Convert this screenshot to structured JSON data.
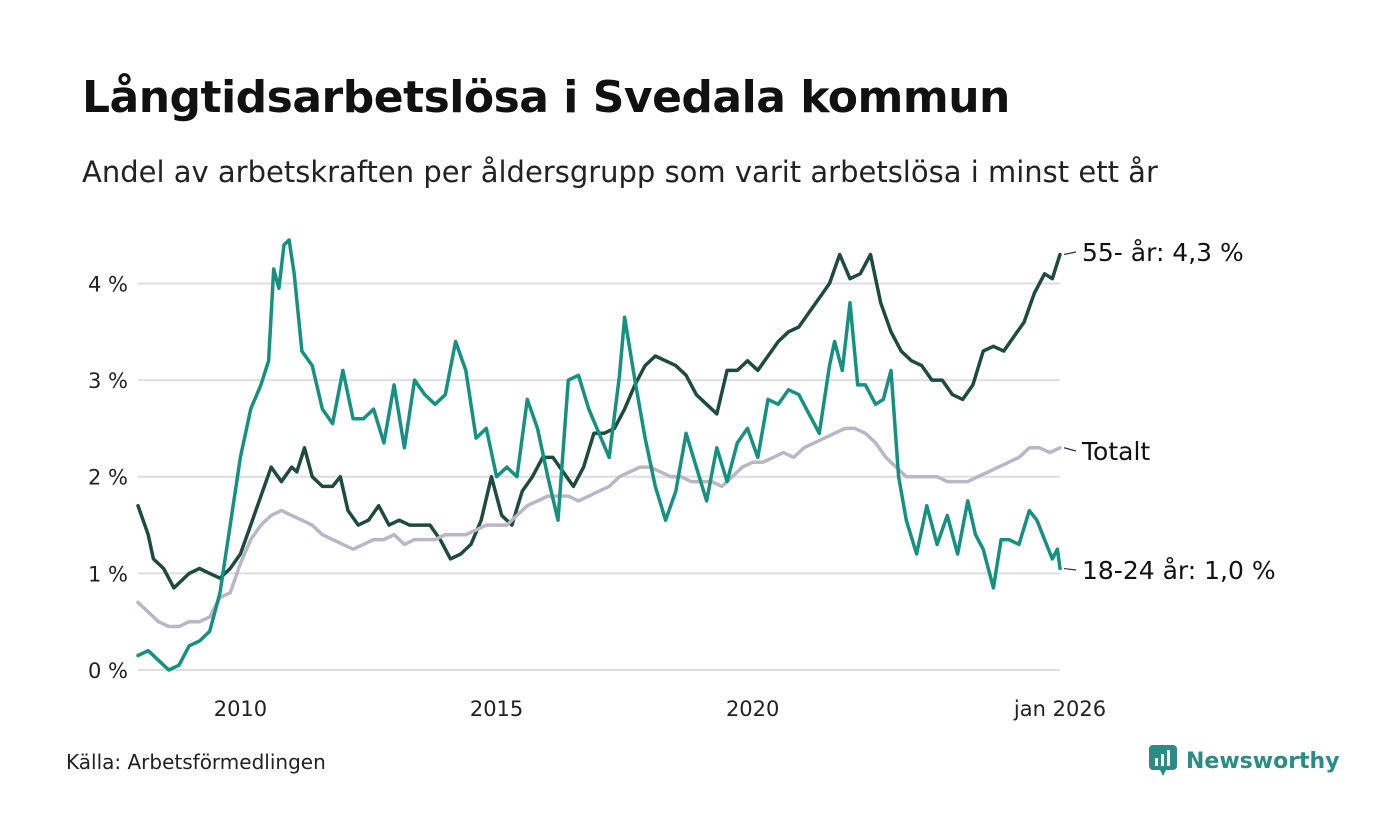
{
  "title": "Långtidsarbetslösa i Svedala kommun",
  "subtitle": "Andel av arbetskraften per åldersgrupp som varit arbetslösa i minst ett år",
  "source": "Källa: Arbetsförmedlingen",
  "brand": "Newsworthy",
  "colors": {
    "youth": "#16917f",
    "senior": "#1e4a40",
    "total": "#b9b6c6",
    "grid": "#dedde3",
    "brand": "#2a8c84"
  },
  "chart_data": {
    "type": "line",
    "title": "Långtidsarbetslösa i Svedala kommun",
    "xlabel": "",
    "ylabel": "",
    "ylim": [
      0,
      4.5
    ],
    "xlim": [
      2008.0,
      2026.0
    ],
    "y_ticks": [
      {
        "value": 0,
        "label": "0 %"
      },
      {
        "value": 1,
        "label": "1 %"
      },
      {
        "value": 2,
        "label": "2 %"
      },
      {
        "value": 3,
        "label": "3 %"
      },
      {
        "value": 4,
        "label": "4 %"
      }
    ],
    "x_ticks": [
      {
        "value": 2010,
        "label": "2010"
      },
      {
        "value": 2015,
        "label": "2015"
      },
      {
        "value": 2020,
        "label": "2020"
      },
      {
        "value": 2026,
        "label": "jan 2026"
      }
    ],
    "series": [
      {
        "name": "55- år",
        "end_label": "55- år: 4,3 %",
        "color_key": "senior",
        "points": [
          [
            2008.0,
            1.7
          ],
          [
            2008.2,
            1.4
          ],
          [
            2008.3,
            1.15
          ],
          [
            2008.5,
            1.05
          ],
          [
            2008.7,
            0.85
          ],
          [
            2009.0,
            1.0
          ],
          [
            2009.2,
            1.05
          ],
          [
            2009.4,
            1.0
          ],
          [
            2009.6,
            0.95
          ],
          [
            2009.8,
            1.05
          ],
          [
            2010.0,
            1.2
          ],
          [
            2010.2,
            1.5
          ],
          [
            2010.4,
            1.8
          ],
          [
            2010.6,
            2.1
          ],
          [
            2010.8,
            1.95
          ],
          [
            2011.0,
            2.1
          ],
          [
            2011.1,
            2.05
          ],
          [
            2011.25,
            2.3
          ],
          [
            2011.4,
            2.0
          ],
          [
            2011.6,
            1.9
          ],
          [
            2011.8,
            1.9
          ],
          [
            2011.95,
            2.0
          ],
          [
            2012.1,
            1.65
          ],
          [
            2012.3,
            1.5
          ],
          [
            2012.5,
            1.55
          ],
          [
            2012.7,
            1.7
          ],
          [
            2012.9,
            1.5
          ],
          [
            2013.1,
            1.55
          ],
          [
            2013.3,
            1.5
          ],
          [
            2013.5,
            1.5
          ],
          [
            2013.7,
            1.5
          ],
          [
            2013.9,
            1.35
          ],
          [
            2014.1,
            1.15
          ],
          [
            2014.3,
            1.2
          ],
          [
            2014.5,
            1.3
          ],
          [
            2014.7,
            1.55
          ],
          [
            2014.9,
            2.0
          ],
          [
            2015.1,
            1.6
          ],
          [
            2015.3,
            1.5
          ],
          [
            2015.5,
            1.85
          ],
          [
            2015.7,
            2.0
          ],
          [
            2015.9,
            2.2
          ],
          [
            2016.1,
            2.2
          ],
          [
            2016.3,
            2.05
          ],
          [
            2016.5,
            1.9
          ],
          [
            2016.7,
            2.1
          ],
          [
            2016.9,
            2.45
          ],
          [
            2017.1,
            2.45
          ],
          [
            2017.3,
            2.5
          ],
          [
            2017.5,
            2.7
          ],
          [
            2017.7,
            2.95
          ],
          [
            2017.9,
            3.15
          ],
          [
            2018.1,
            3.25
          ],
          [
            2018.3,
            3.2
          ],
          [
            2018.5,
            3.15
          ],
          [
            2018.7,
            3.05
          ],
          [
            2018.9,
            2.85
          ],
          [
            2019.1,
            2.75
          ],
          [
            2019.3,
            2.65
          ],
          [
            2019.5,
            3.1
          ],
          [
            2019.7,
            3.1
          ],
          [
            2019.9,
            3.2
          ],
          [
            2020.1,
            3.1
          ],
          [
            2020.3,
            3.25
          ],
          [
            2020.5,
            3.4
          ],
          [
            2020.7,
            3.5
          ],
          [
            2020.9,
            3.55
          ],
          [
            2021.1,
            3.7
          ],
          [
            2021.3,
            3.85
          ],
          [
            2021.5,
            4.0
          ],
          [
            2021.7,
            4.3
          ],
          [
            2021.9,
            4.05
          ],
          [
            2022.1,
            4.1
          ],
          [
            2022.3,
            4.3
          ],
          [
            2022.5,
            3.8
          ],
          [
            2022.7,
            3.5
          ],
          [
            2022.9,
            3.3
          ],
          [
            2023.1,
            3.2
          ],
          [
            2023.3,
            3.15
          ],
          [
            2023.5,
            3.0
          ],
          [
            2023.7,
            3.0
          ],
          [
            2023.9,
            2.85
          ],
          [
            2024.1,
            2.8
          ],
          [
            2024.3,
            2.95
          ],
          [
            2024.5,
            3.3
          ],
          [
            2024.7,
            3.35
          ],
          [
            2024.9,
            3.3
          ],
          [
            2025.1,
            3.45
          ],
          [
            2025.3,
            3.6
          ],
          [
            2025.5,
            3.9
          ],
          [
            2025.7,
            4.1
          ],
          [
            2025.85,
            4.05
          ],
          [
            2026.0,
            4.3
          ]
        ]
      },
      {
        "name": "Totalt",
        "end_label": "Totalt",
        "color_key": "total",
        "points": [
          [
            2008.0,
            0.7
          ],
          [
            2008.2,
            0.6
          ],
          [
            2008.4,
            0.5
          ],
          [
            2008.6,
            0.45
          ],
          [
            2008.8,
            0.45
          ],
          [
            2009.0,
            0.5
          ],
          [
            2009.2,
            0.5
          ],
          [
            2009.4,
            0.55
          ],
          [
            2009.6,
            0.75
          ],
          [
            2009.8,
            0.8
          ],
          [
            2010.0,
            1.1
          ],
          [
            2010.2,
            1.35
          ],
          [
            2010.4,
            1.5
          ],
          [
            2010.6,
            1.6
          ],
          [
            2010.8,
            1.65
          ],
          [
            2011.0,
            1.6
          ],
          [
            2011.2,
            1.55
          ],
          [
            2011.4,
            1.5
          ],
          [
            2011.6,
            1.4
          ],
          [
            2011.8,
            1.35
          ],
          [
            2012.0,
            1.3
          ],
          [
            2012.2,
            1.25
          ],
          [
            2012.4,
            1.3
          ],
          [
            2012.6,
            1.35
          ],
          [
            2012.8,
            1.35
          ],
          [
            2013.0,
            1.4
          ],
          [
            2013.2,
            1.3
          ],
          [
            2013.4,
            1.35
          ],
          [
            2013.6,
            1.35
          ],
          [
            2013.8,
            1.35
          ],
          [
            2014.0,
            1.4
          ],
          [
            2014.2,
            1.4
          ],
          [
            2014.4,
            1.4
          ],
          [
            2014.6,
            1.45
          ],
          [
            2014.8,
            1.5
          ],
          [
            2015.0,
            1.5
          ],
          [
            2015.2,
            1.5
          ],
          [
            2015.4,
            1.6
          ],
          [
            2015.6,
            1.7
          ],
          [
            2015.8,
            1.75
          ],
          [
            2016.0,
            1.8
          ],
          [
            2016.2,
            1.8
          ],
          [
            2016.4,
            1.8
          ],
          [
            2016.6,
            1.75
          ],
          [
            2016.8,
            1.8
          ],
          [
            2017.0,
            1.85
          ],
          [
            2017.2,
            1.9
          ],
          [
            2017.4,
            2.0
          ],
          [
            2017.6,
            2.05
          ],
          [
            2017.8,
            2.1
          ],
          [
            2018.0,
            2.1
          ],
          [
            2018.2,
            2.05
          ],
          [
            2018.4,
            2.0
          ],
          [
            2018.6,
            2.0
          ],
          [
            2018.8,
            1.95
          ],
          [
            2019.0,
            1.95
          ],
          [
            2019.2,
            1.95
          ],
          [
            2019.4,
            1.9
          ],
          [
            2019.6,
            2.0
          ],
          [
            2019.8,
            2.1
          ],
          [
            2020.0,
            2.15
          ],
          [
            2020.2,
            2.15
          ],
          [
            2020.4,
            2.2
          ],
          [
            2020.6,
            2.25
          ],
          [
            2020.8,
            2.2
          ],
          [
            2021.0,
            2.3
          ],
          [
            2021.2,
            2.35
          ],
          [
            2021.4,
            2.4
          ],
          [
            2021.6,
            2.45
          ],
          [
            2021.8,
            2.5
          ],
          [
            2022.0,
            2.5
          ],
          [
            2022.2,
            2.45
          ],
          [
            2022.4,
            2.35
          ],
          [
            2022.6,
            2.2
          ],
          [
            2022.8,
            2.1
          ],
          [
            2023.0,
            2.0
          ],
          [
            2023.2,
            2.0
          ],
          [
            2023.4,
            2.0
          ],
          [
            2023.6,
            2.0
          ],
          [
            2023.8,
            1.95
          ],
          [
            2024.0,
            1.95
          ],
          [
            2024.2,
            1.95
          ],
          [
            2024.4,
            2.0
          ],
          [
            2024.6,
            2.05
          ],
          [
            2024.8,
            2.1
          ],
          [
            2025.0,
            2.15
          ],
          [
            2025.2,
            2.2
          ],
          [
            2025.4,
            2.3
          ],
          [
            2025.6,
            2.3
          ],
          [
            2025.8,
            2.25
          ],
          [
            2026.0,
            2.3
          ]
        ]
      },
      {
        "name": "18-24 år",
        "end_label": "18-24 år: 1,0 %",
        "color_key": "youth",
        "points": [
          [
            2008.0,
            0.15
          ],
          [
            2008.2,
            0.2
          ],
          [
            2008.4,
            0.1
          ],
          [
            2008.6,
            0.0
          ],
          [
            2008.8,
            0.05
          ],
          [
            2009.0,
            0.25
          ],
          [
            2009.2,
            0.3
          ],
          [
            2009.4,
            0.4
          ],
          [
            2009.6,
            0.8
          ],
          [
            2009.8,
            1.5
          ],
          [
            2010.0,
            2.2
          ],
          [
            2010.2,
            2.7
          ],
          [
            2010.4,
            2.95
          ],
          [
            2010.55,
            3.2
          ],
          [
            2010.65,
            4.15
          ],
          [
            2010.75,
            3.95
          ],
          [
            2010.85,
            4.4
          ],
          [
            2010.95,
            4.45
          ],
          [
            2011.05,
            4.1
          ],
          [
            2011.2,
            3.3
          ],
          [
            2011.4,
            3.15
          ],
          [
            2011.6,
            2.7
          ],
          [
            2011.8,
            2.55
          ],
          [
            2012.0,
            3.1
          ],
          [
            2012.2,
            2.6
          ],
          [
            2012.4,
            2.6
          ],
          [
            2012.6,
            2.7
          ],
          [
            2012.8,
            2.35
          ],
          [
            2013.0,
            2.95
          ],
          [
            2013.2,
            2.3
          ],
          [
            2013.4,
            3.0
          ],
          [
            2013.6,
            2.85
          ],
          [
            2013.8,
            2.75
          ],
          [
            2014.0,
            2.85
          ],
          [
            2014.2,
            3.4
          ],
          [
            2014.4,
            3.1
          ],
          [
            2014.6,
            2.4
          ],
          [
            2014.8,
            2.5
          ],
          [
            2015.0,
            2.0
          ],
          [
            2015.2,
            2.1
          ],
          [
            2015.4,
            2.0
          ],
          [
            2015.6,
            2.8
          ],
          [
            2015.8,
            2.5
          ],
          [
            2016.0,
            2.0
          ],
          [
            2016.2,
            1.55
          ],
          [
            2016.4,
            3.0
          ],
          [
            2016.6,
            3.05
          ],
          [
            2016.8,
            2.7
          ],
          [
            2017.0,
            2.45
          ],
          [
            2017.2,
            2.2
          ],
          [
            2017.4,
            3.05
          ],
          [
            2017.5,
            3.65
          ],
          [
            2017.7,
            3.0
          ],
          [
            2017.9,
            2.4
          ],
          [
            2018.1,
            1.9
          ],
          [
            2018.3,
            1.55
          ],
          [
            2018.5,
            1.85
          ],
          [
            2018.7,
            2.45
          ],
          [
            2018.9,
            2.1
          ],
          [
            2019.1,
            1.75
          ],
          [
            2019.3,
            2.3
          ],
          [
            2019.5,
            1.95
          ],
          [
            2019.7,
            2.35
          ],
          [
            2019.9,
            2.5
          ],
          [
            2020.1,
            2.2
          ],
          [
            2020.3,
            2.8
          ],
          [
            2020.5,
            2.75
          ],
          [
            2020.7,
            2.9
          ],
          [
            2020.9,
            2.85
          ],
          [
            2021.1,
            2.65
          ],
          [
            2021.3,
            2.45
          ],
          [
            2021.5,
            3.15
          ],
          [
            2021.6,
            3.4
          ],
          [
            2021.75,
            3.1
          ],
          [
            2021.9,
            3.8
          ],
          [
            2022.05,
            2.95
          ],
          [
            2022.2,
            2.95
          ],
          [
            2022.4,
            2.75
          ],
          [
            2022.55,
            2.8
          ],
          [
            2022.7,
            3.1
          ],
          [
            2022.85,
            2.0
          ],
          [
            2023.0,
            1.55
          ],
          [
            2023.2,
            1.2
          ],
          [
            2023.4,
            1.7
          ],
          [
            2023.6,
            1.3
          ],
          [
            2023.8,
            1.6
          ],
          [
            2024.0,
            1.2
          ],
          [
            2024.2,
            1.75
          ],
          [
            2024.35,
            1.4
          ],
          [
            2024.5,
            1.25
          ],
          [
            2024.7,
            0.85
          ],
          [
            2024.85,
            1.35
          ],
          [
            2025.0,
            1.35
          ],
          [
            2025.2,
            1.3
          ],
          [
            2025.4,
            1.65
          ],
          [
            2025.55,
            1.55
          ],
          [
            2025.7,
            1.35
          ],
          [
            2025.85,
            1.15
          ],
          [
            2025.95,
            1.25
          ],
          [
            2026.0,
            1.05
          ]
        ]
      }
    ]
  }
}
